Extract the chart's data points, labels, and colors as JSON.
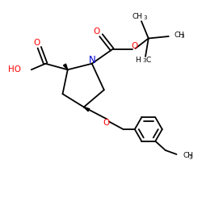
{
  "bg_color": "#ffffff",
  "bond_color": "#000000",
  "o_color": "#ff0000",
  "n_color": "#0000cc",
  "figsize": [
    2.5,
    2.5
  ],
  "dpi": 100,
  "xlim": [
    0,
    10
  ],
  "ylim": [
    0,
    10
  ],
  "lw": 1.3
}
